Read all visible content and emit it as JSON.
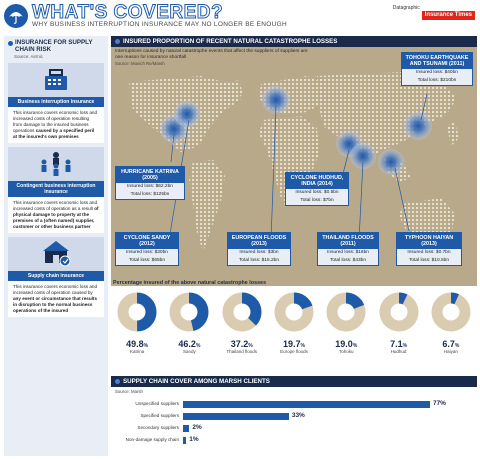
{
  "header": {
    "title": "WHAT'S COVERED?",
    "subtitle": "WHY BUSINESS INTERRUPTION INSURANCE MAY NO LONGER BE ENOUGH",
    "datagraphic_label": "Datagraphic",
    "brand": "Insurance Times"
  },
  "left": {
    "title": "INSURANCE FOR SUPPLY CHAIN RISK",
    "source": "Source: Airmic",
    "cards": [
      {
        "icon": "cash-register-icon",
        "label": "Business interruption insurance",
        "desc_plain": "This insurance covers economic loss and increased costs of operation resulting from damage to the insured business operations",
        "desc_bold": "caused by a specified peril at the insured's own premises"
      },
      {
        "icon": "people-network-icon",
        "label": "Contingent business interruption insurance",
        "desc_plain": "This insurance covers economic loss and increased costs of operation as a result",
        "desc_bold": "of physical damage to property at the premises of a (often named) supplier, customer or other business partner"
      },
      {
        "icon": "supply-chain-icon",
        "label": "Supply chain insurance",
        "desc_plain": "This insurance covers economic loss and increased costs of operation caused by",
        "desc_bold": "any event or circumstance that results in disruption to the normal business operations of the insured"
      }
    ]
  },
  "main": {
    "title": "INSURED PROPORTION OF RECENT NATURAL CATASTROPHE LOSSES",
    "intro": "Interruptions caused by natural catastrophe events that affect the suppliers of suppliers are one reason for insurance shortfall",
    "source": "Source: Munich Re/Marsh",
    "events": [
      {
        "name": "HURRICANE KATRINA (2005)",
        "insured": "Insured loss: $62.2bn",
        "total": "Total loss: $125bn"
      },
      {
        "name": "CYCLONE SANDY (2012)",
        "insured": "Insured loss: $30bn",
        "total": "Total loss: $65bn"
      },
      {
        "name": "EUROPEAN FLOODS (2013)",
        "insured": "Insured loss: $3bn",
        "total": "Total loss: $15.2bn"
      },
      {
        "name": "CYCLONE HUDHUD, INDIA (2014)",
        "insured": "Insured loss: $0.5bn",
        "total": "Total loss: $7bn"
      },
      {
        "name": "THAILAND FLOODS (2011)",
        "insured": "Insured loss: $16bn",
        "total": "Total loss: $43bn"
      },
      {
        "name": "TYPHOON HAIYAN (2013)",
        "insured": "Insured loss: $0.7bn",
        "total": "Total loss: $10.5bn"
      },
      {
        "name": "TOHOKU EARTHQUAKE AND TSUNAMI (2011)",
        "insured": "Insured loss: $40bn",
        "total": "Total loss: $210bn"
      }
    ],
    "pct_title": "Percentage insured of the above natural catastrophe losses",
    "donuts": [
      {
        "value": 49.8,
        "int": "49.8",
        "pct": "%",
        "label": "Katrina"
      },
      {
        "value": 46.2,
        "int": "46.2",
        "pct": "%",
        "label": "Sandy"
      },
      {
        "value": 37.2,
        "int": "37.2",
        "pct": "%",
        "label": "Thailand floods"
      },
      {
        "value": 19.7,
        "int": "19.7",
        "pct": "%",
        "label": "Europe floods"
      },
      {
        "value": 19.0,
        "int": "19.0",
        "pct": "%",
        "label": "Tohoku"
      },
      {
        "value": 7.1,
        "int": "7.1",
        "pct": "%",
        "label": "Hudhud"
      },
      {
        "value": 6.7,
        "int": "6.7",
        "pct": "%",
        "label": "Haiyan"
      }
    ]
  },
  "bottom": {
    "title": "SUPPLY CHAIN COVER AMONG MARSH CLIENTS",
    "source": "Source: Marsh",
    "rows": [
      {
        "label": "Unspecified suppliers",
        "value": 77,
        "text": "77%"
      },
      {
        "label": "Specified suppliers",
        "value": 33,
        "text": "33%"
      },
      {
        "label": "Secondary suppliers",
        "value": 2,
        "text": "2%"
      },
      {
        "label": "Non-damage supply chain",
        "value": 1,
        "text": "1%"
      }
    ]
  },
  "colors": {
    "accent": "#1f5aa8",
    "navy": "#1a2a4a",
    "map_bg": "#b9a98b",
    "donut_track": "#d9ccb1",
    "brand_red": "#e0261b"
  }
}
